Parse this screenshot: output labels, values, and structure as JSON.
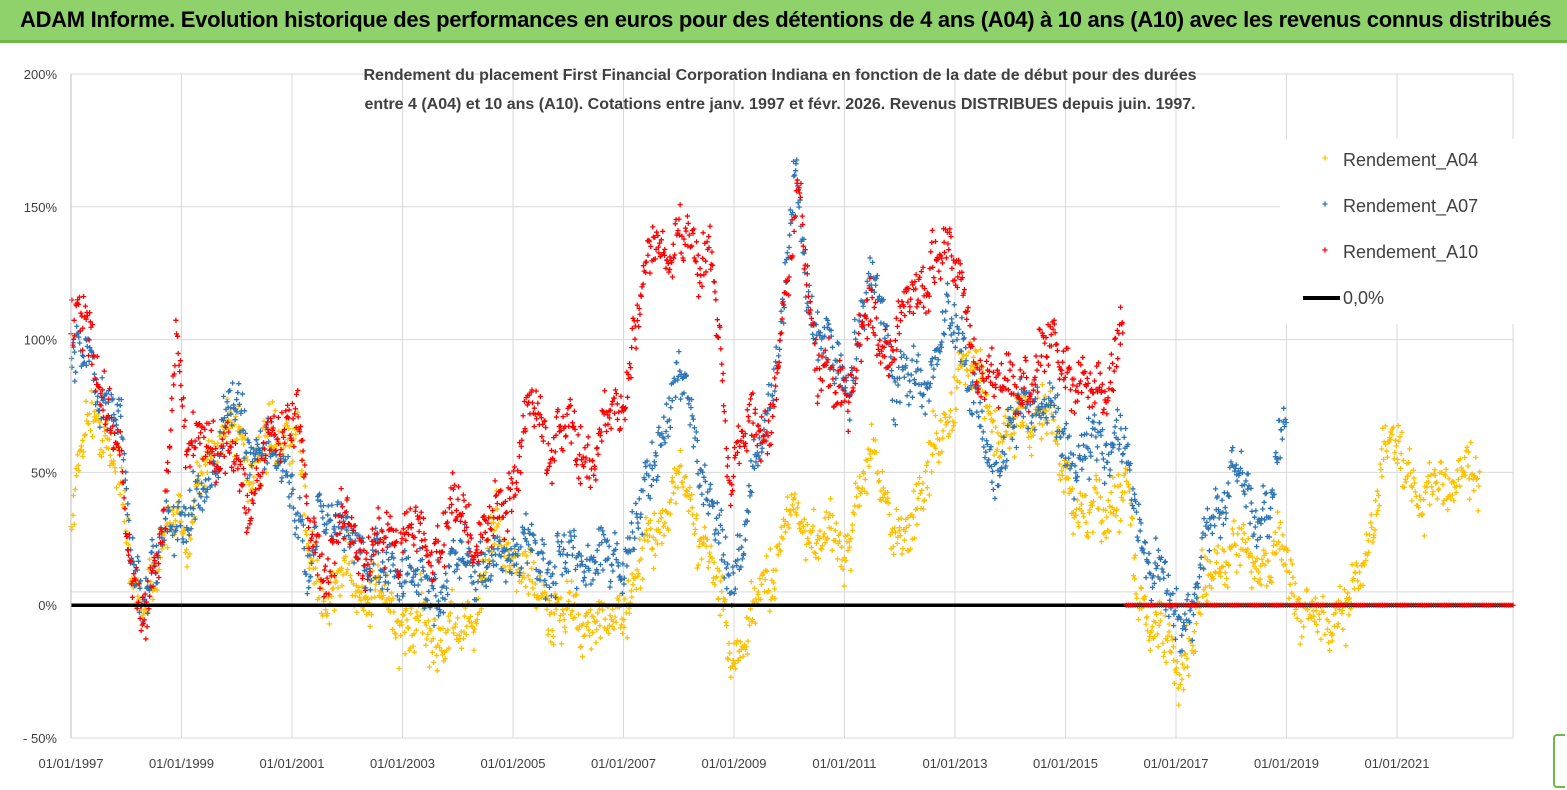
{
  "banner": {
    "title": "ADAM Informe. Evolution historique des performances en euros pour des détentions de 4 ans (A04) à 10 ans (A10) avec les revenus connus distribués"
  },
  "colors": {
    "banner_bg": "#8fd16a",
    "A04": "#ffc000",
    "A07": "#2e75b6",
    "A10": "#ff0000",
    "zero_line": "#000000",
    "grid": "#d9d9d9"
  },
  "chart_data": {
    "type": "scatter",
    "title_line1": "Rendement du placement First Financial Corporation Indiana en fonction de la date de début pour des durées",
    "title_line2": "entre 4 (A04) et 10 ans (A10).  Cotations entre janv. 1997 et févr. 2026. Revenus DISTRIBUES depuis juin. 1997.",
    "x_tick_labels": [
      "01/01/1997",
      "01/01/1999",
      "01/01/2001",
      "01/01/2003",
      "01/01/2005",
      "01/01/2007",
      "01/01/2009",
      "01/01/2011",
      "01/01/2013",
      "01/01/2015",
      "01/01/2017",
      "01/01/2019",
      "01/01/2021"
    ],
    "xlim": [
      1997.0,
      2023.1
    ],
    "y_tick_labels": [
      "200%",
      "150%",
      "100%",
      "50%",
      "0%",
      "- 50%"
    ],
    "y_ticks": [
      200,
      150,
      100,
      50,
      0,
      -50
    ],
    "ylim": [
      -50,
      200
    ],
    "legend": [
      "Rendement_A04",
      "Rendement_A07",
      "Rendement_A10",
      "0,0%"
    ],
    "series": [
      {
        "name": "Rendement_A04",
        "color": "#ffc000",
        "end": 2022.5,
        "anchors": [
          [
            1997.0,
            30
          ],
          [
            1997.2,
            60
          ],
          [
            1997.5,
            75
          ],
          [
            1997.9,
            45
          ],
          [
            1998.1,
            10
          ],
          [
            1998.5,
            5
          ],
          [
            1998.9,
            40
          ],
          [
            1999.1,
            20
          ],
          [
            1999.4,
            55
          ],
          [
            1999.8,
            68
          ],
          [
            2000.3,
            55
          ],
          [
            2000.8,
            60
          ],
          [
            2001.1,
            70
          ],
          [
            2001.3,
            15
          ],
          [
            2001.6,
            5
          ],
          [
            2002.0,
            10
          ],
          [
            2002.5,
            5
          ],
          [
            2003.0,
            -8
          ],
          [
            2003.5,
            -10
          ],
          [
            2004.0,
            -12
          ],
          [
            2004.3,
            -5
          ],
          [
            2004.6,
            25
          ],
          [
            2005.0,
            20
          ],
          [
            2005.4,
            5
          ],
          [
            2006.0,
            -5
          ],
          [
            2006.7,
            -8
          ],
          [
            2007.2,
            5
          ],
          [
            2007.6,
            30
          ],
          [
            2008.0,
            45
          ],
          [
            2008.4,
            30
          ],
          [
            2008.8,
            -5
          ],
          [
            2009.0,
            -20
          ],
          [
            2009.3,
            -10
          ],
          [
            2009.6,
            10
          ],
          [
            2010.0,
            35
          ],
          [
            2010.3,
            30
          ],
          [
            2010.7,
            25
          ],
          [
            2011.0,
            20
          ],
          [
            2011.3,
            45
          ],
          [
            2011.6,
            55
          ],
          [
            2011.9,
            30
          ],
          [
            2012.1,
            20
          ],
          [
            2012.5,
            55
          ],
          [
            2012.9,
            65
          ],
          [
            2013.1,
            95
          ],
          [
            2013.4,
            85
          ],
          [
            2013.7,
            70
          ],
          [
            2014.0,
            65
          ],
          [
            2014.3,
            70
          ],
          [
            2014.6,
            75
          ],
          [
            2015.0,
            50
          ],
          [
            2015.4,
            30
          ],
          [
            2015.8,
            40
          ],
          [
            2016.1,
            45
          ],
          [
            2016.3,
            5
          ],
          [
            2016.7,
            -10
          ],
          [
            2017.0,
            -25
          ],
          [
            2017.3,
            -10
          ],
          [
            2017.6,
            10
          ],
          [
            2017.9,
            20
          ],
          [
            2018.2,
            20
          ],
          [
            2018.7,
            15
          ],
          [
            2019.0,
            20
          ],
          [
            2019.3,
            -5
          ],
          [
            2019.8,
            -5
          ],
          [
            2020.2,
            0
          ],
          [
            2020.6,
            40
          ],
          [
            2020.9,
            60
          ],
          [
            2021.2,
            55
          ],
          [
            2021.5,
            35
          ],
          [
            2021.8,
            50
          ],
          [
            2022.0,
            45
          ],
          [
            2022.5,
            50
          ]
        ]
      },
      {
        "name": "Rendement_A07",
        "color": "#2e75b6",
        "end": 2019.0,
        "anchors": [
          [
            1997.0,
            95
          ],
          [
            1997.3,
            90
          ],
          [
            1997.6,
            80
          ],
          [
            1997.9,
            65
          ],
          [
            1998.1,
            20
          ],
          [
            1998.4,
            5
          ],
          [
            1998.9,
            40
          ],
          [
            1999.1,
            28
          ],
          [
            1999.5,
            50
          ],
          [
            1999.9,
            75
          ],
          [
            2000.3,
            60
          ],
          [
            2000.7,
            55
          ],
          [
            2001.0,
            50
          ],
          [
            2001.3,
            5
          ],
          [
            2001.5,
            40
          ],
          [
            2001.8,
            30
          ],
          [
            2002.2,
            20
          ],
          [
            2002.6,
            10
          ],
          [
            2003.0,
            15
          ],
          [
            2003.4,
            5
          ],
          [
            2003.8,
            10
          ],
          [
            2004.2,
            20
          ],
          [
            2004.6,
            10
          ],
          [
            2005.0,
            25
          ],
          [
            2005.3,
            20
          ],
          [
            2005.7,
            15
          ],
          [
            2006.2,
            20
          ],
          [
            2006.7,
            15
          ],
          [
            2007.0,
            20
          ],
          [
            2007.4,
            40
          ],
          [
            2007.8,
            75
          ],
          [
            2008.1,
            85
          ],
          [
            2008.5,
            45
          ],
          [
            2008.9,
            10
          ],
          [
            2009.2,
            30
          ],
          [
            2009.5,
            60
          ],
          [
            2009.9,
            110
          ],
          [
            2010.1,
            160
          ],
          [
            2010.4,
            110
          ],
          [
            2010.8,
            90
          ],
          [
            2011.1,
            85
          ],
          [
            2011.3,
            110
          ],
          [
            2011.6,
            125
          ],
          [
            2011.9,
            80
          ],
          [
            2012.2,
            85
          ],
          [
            2012.6,
            85
          ],
          [
            2012.9,
            110
          ],
          [
            2013.1,
            105
          ],
          [
            2013.4,
            70
          ],
          [
            2013.7,
            50
          ],
          [
            2014.0,
            65
          ],
          [
            2014.4,
            80
          ],
          [
            2014.8,
            70
          ],
          [
            2015.2,
            55
          ],
          [
            2015.6,
            60
          ],
          [
            2016.0,
            65
          ],
          [
            2016.3,
            30
          ],
          [
            2016.7,
            10
          ],
          [
            2017.0,
            -5
          ],
          [
            2017.3,
            0
          ],
          [
            2017.6,
            25
          ],
          [
            2018.0,
            50
          ],
          [
            2018.4,
            35
          ],
          [
            2018.8,
            40
          ],
          [
            2019.0,
            75
          ]
        ]
      },
      {
        "name": "Rendement_A10",
        "color": "#ff0000",
        "end": 2016.05,
        "anchors": [
          [
            1997.0,
            110
          ],
          [
            1997.3,
            100
          ],
          [
            1997.6,
            80
          ],
          [
            1997.9,
            50
          ],
          [
            1998.1,
            10
          ],
          [
            1998.4,
            0
          ],
          [
            1998.7,
            30
          ],
          [
            1998.9,
            110
          ],
          [
            1999.1,
            55
          ],
          [
            1999.5,
            65
          ],
          [
            1999.9,
            55
          ],
          [
            2000.2,
            40
          ],
          [
            2000.6,
            60
          ],
          [
            2000.9,
            70
          ],
          [
            2001.1,
            75
          ],
          [
            2001.3,
            25
          ],
          [
            2001.6,
            15
          ],
          [
            2001.9,
            30
          ],
          [
            2002.3,
            20
          ],
          [
            2002.7,
            25
          ],
          [
            2003.1,
            30
          ],
          [
            2003.5,
            20
          ],
          [
            2003.9,
            35
          ],
          [
            2004.3,
            25
          ],
          [
            2004.7,
            30
          ],
          [
            2005.0,
            50
          ],
          [
            2005.3,
            75
          ],
          [
            2005.7,
            60
          ],
          [
            2006.0,
            65
          ],
          [
            2006.4,
            55
          ],
          [
            2006.8,
            70
          ],
          [
            2007.0,
            80
          ],
          [
            2007.3,
            110
          ],
          [
            2007.6,
            140
          ],
          [
            2007.9,
            130
          ],
          [
            2008.2,
            140
          ],
          [
            2008.6,
            130
          ],
          [
            2008.9,
            50
          ],
          [
            2009.2,
            70
          ],
          [
            2009.6,
            60
          ],
          [
            2009.9,
            110
          ],
          [
            2010.2,
            155
          ],
          [
            2010.5,
            90
          ],
          [
            2010.8,
            80
          ],
          [
            2011.1,
            85
          ],
          [
            2011.4,
            110
          ],
          [
            2011.8,
            95
          ],
          [
            2012.2,
            115
          ],
          [
            2012.5,
            125
          ],
          [
            2012.8,
            130
          ],
          [
            2013.1,
            130
          ],
          [
            2013.4,
            80
          ],
          [
            2013.8,
            90
          ],
          [
            2014.2,
            75
          ],
          [
            2014.6,
            100
          ],
          [
            2015.0,
            90
          ],
          [
            2015.4,
            80
          ],
          [
            2015.7,
            80
          ],
          [
            2016.05,
            110
          ]
        ]
      },
      {
        "name": "0,0%",
        "color": "#000000",
        "values_from": 1997.0,
        "values_to": 2023.1,
        "value": 0
      }
    ],
    "zero_markers_A10_from": 2016.1,
    "grid": true,
    "legend_position": "right"
  }
}
